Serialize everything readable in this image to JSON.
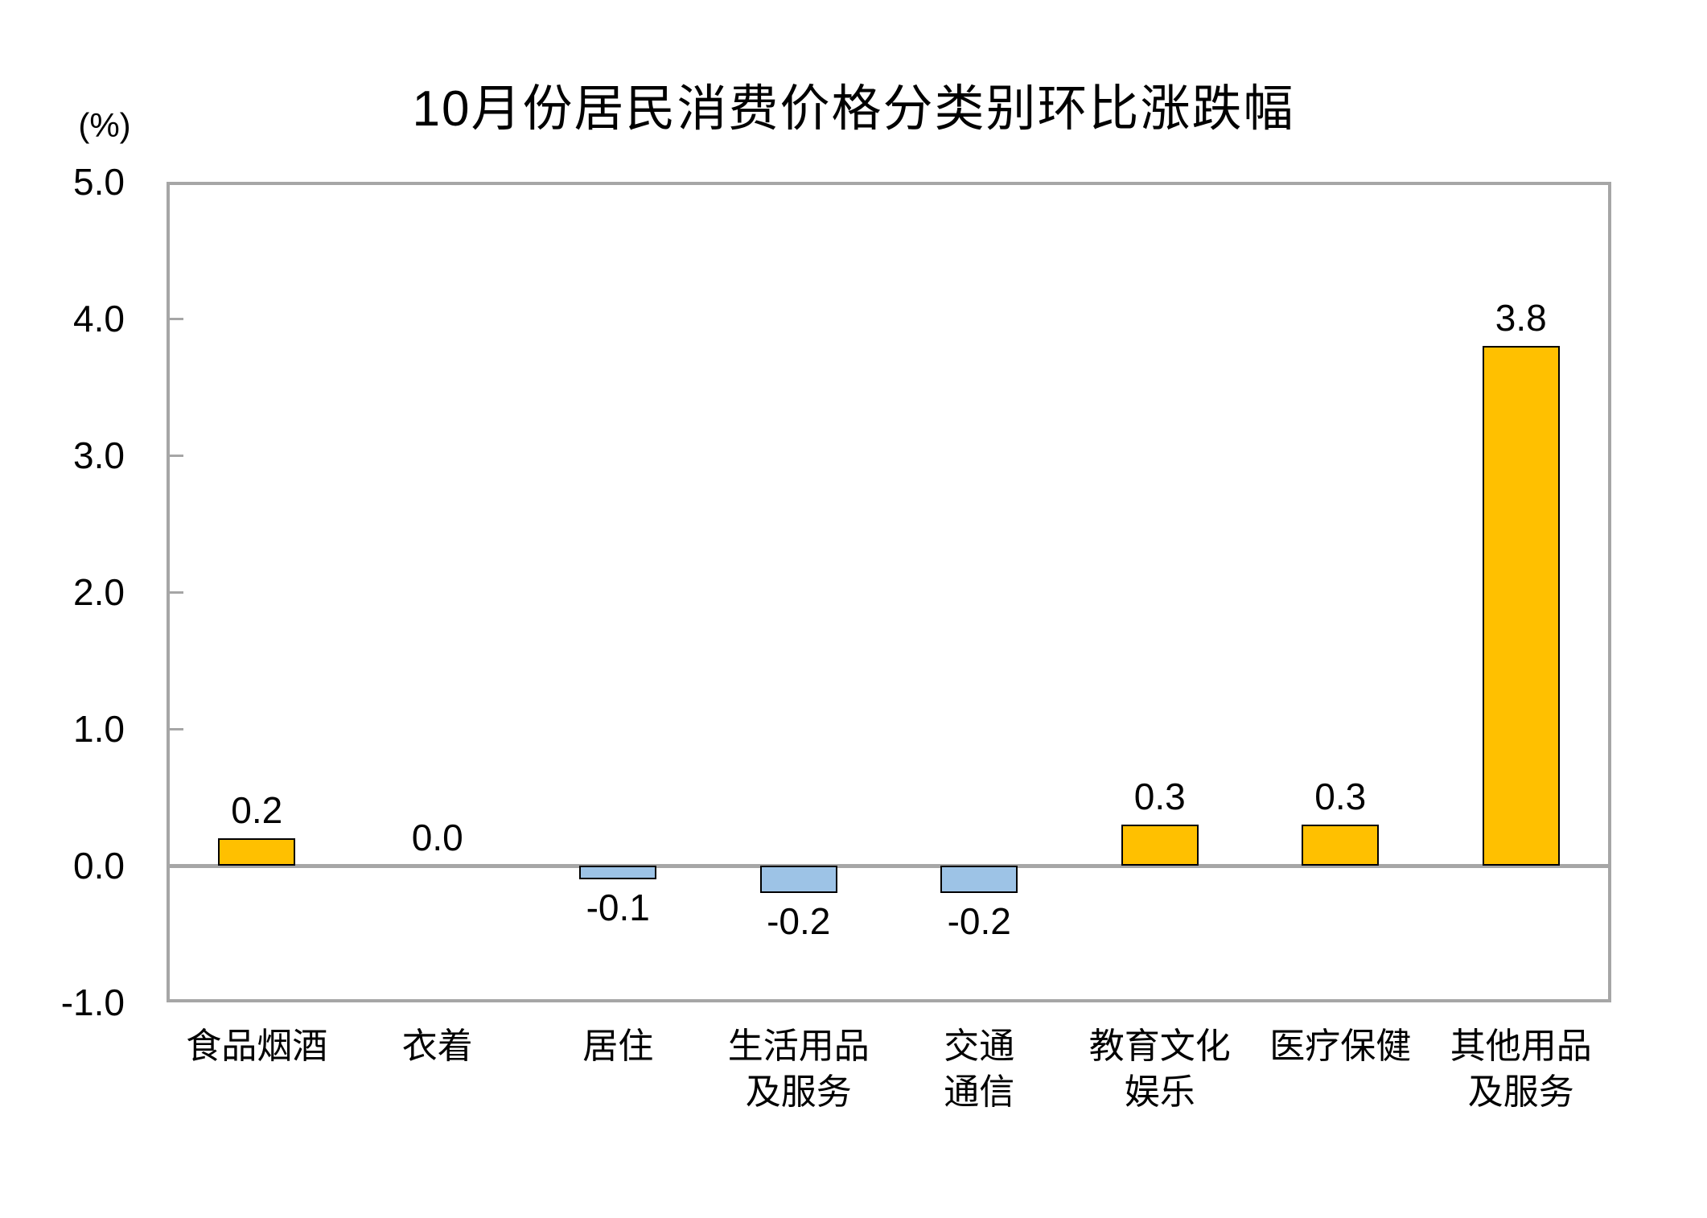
{
  "chart_data": {
    "type": "bar",
    "title": "10月份居民消费价格分类别环比涨跌幅",
    "unit_label": "(%)",
    "categories": [
      "食品烟酒",
      "衣着",
      "居住",
      "生活用品\n及服务",
      "交通\n通信",
      "教育文化\n娱乐",
      "医疗保健",
      "其他用品\n及服务"
    ],
    "values": [
      0.2,
      0.0,
      -0.1,
      -0.2,
      -0.2,
      0.3,
      0.3,
      3.8
    ],
    "data_labels": [
      "0.2",
      "0.0",
      "-0.1",
      "-0.2",
      "-0.2",
      "0.3",
      "0.3",
      "3.8"
    ],
    "xlabel": "",
    "ylabel": "(%)",
    "ylim": [
      -1.0,
      5.0
    ],
    "ytick_step": 1.0,
    "ytick_labels": [
      "5.0",
      "4.0",
      "3.0",
      "2.0",
      "1.0",
      "0.0",
      "-1.0"
    ],
    "inner_tick_values": [
      4.0,
      3.0,
      2.0,
      1.0
    ],
    "grid": false,
    "legend": null,
    "colors": {
      "positive_bar": "#FFC000",
      "negative_bar": "#9DC3E6",
      "bar_border": "#000000",
      "axis_line": "#A6A6A6",
      "text": "#000000",
      "background": "#FFFFFF"
    }
  }
}
